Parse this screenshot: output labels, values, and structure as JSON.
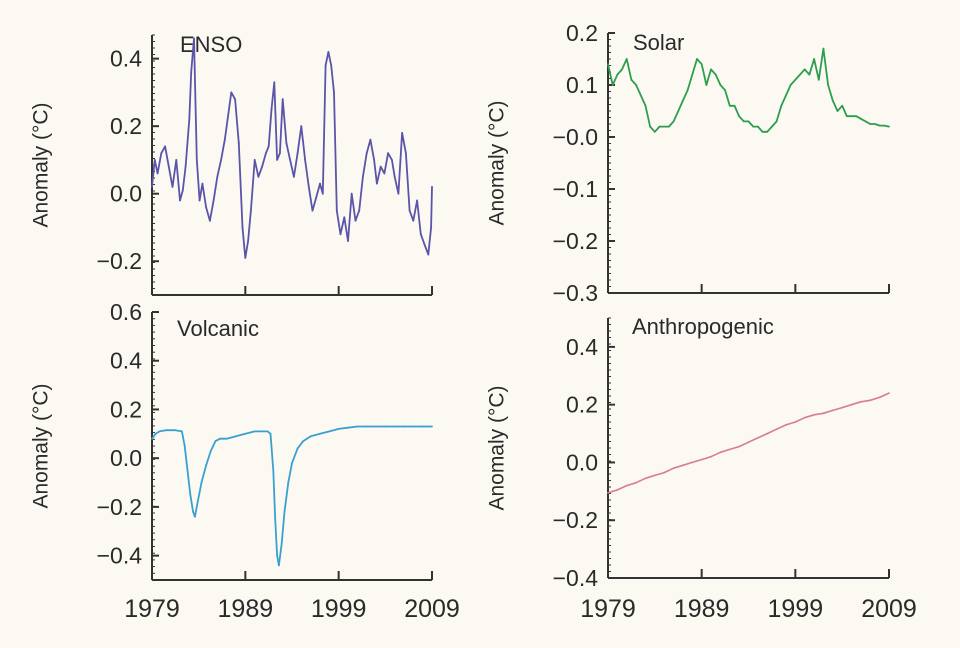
{
  "chart_data": [
    {
      "type": "line",
      "title": "ENSO",
      "xlabel": "",
      "ylabel": "Anomaly (°C)",
      "xlim": [
        1979,
        2009
      ],
      "ylim": [
        -0.3,
        0.47
      ],
      "yticks": [
        0.4,
        0.2,
        0.0,
        -0.2
      ],
      "ytick_labels": [
        "0.4",
        "0.2",
        "0.0",
        "−0.2"
      ],
      "xticks": [
        1979,
        1989,
        1999,
        2009
      ],
      "xtick_labels": [],
      "color": "#5a55a8",
      "series": [
        {
          "name": "ENSO",
          "x": [
            1979.0,
            1979.3,
            1979.6,
            1980.0,
            1980.4,
            1980.8,
            1981.2,
            1981.6,
            1982.0,
            1982.3,
            1982.6,
            1983.0,
            1983.2,
            1983.5,
            1983.8,
            1984.1,
            1984.4,
            1984.8,
            1985.2,
            1985.6,
            1986.0,
            1986.4,
            1986.8,
            1987.1,
            1987.5,
            1987.9,
            1988.3,
            1988.7,
            1989.0,
            1989.3,
            1989.6,
            1990.0,
            1990.4,
            1990.8,
            1991.2,
            1991.5,
            1991.8,
            1992.1,
            1992.4,
            1992.7,
            1993.0,
            1993.4,
            1993.8,
            1994.2,
            1994.6,
            1995.0,
            1995.4,
            1995.8,
            1996.2,
            1996.6,
            1997.0,
            1997.3,
            1997.6,
            1997.9,
            1998.2,
            1998.5,
            1998.8,
            1999.2,
            1999.6,
            2000.0,
            2000.4,
            2000.8,
            2001.2,
            2001.6,
            2002.0,
            2002.4,
            2002.8,
            2003.1,
            2003.5,
            2003.9,
            2004.3,
            2004.7,
            2005.0,
            2005.4,
            2005.8,
            2006.2,
            2006.6,
            2007.0,
            2007.4,
            2007.8,
            2008.2,
            2008.6,
            2008.9,
            2009.0
          ],
          "values": [
            0.02,
            0.1,
            0.06,
            0.12,
            0.14,
            0.08,
            0.02,
            0.1,
            -0.02,
            0.01,
            0.08,
            0.22,
            0.36,
            0.46,
            0.1,
            -0.02,
            0.03,
            -0.04,
            -0.08,
            -0.02,
            0.05,
            0.1,
            0.16,
            0.22,
            0.3,
            0.28,
            0.15,
            -0.1,
            -0.19,
            -0.14,
            -0.05,
            0.1,
            0.05,
            0.08,
            0.12,
            0.14,
            0.25,
            0.33,
            0.1,
            0.12,
            0.28,
            0.15,
            0.1,
            0.05,
            0.12,
            0.2,
            0.1,
            0.02,
            -0.05,
            -0.01,
            0.03,
            0.0,
            0.38,
            0.42,
            0.38,
            0.3,
            -0.05,
            -0.12,
            -0.07,
            -0.14,
            0.0,
            -0.08,
            -0.05,
            0.05,
            0.12,
            0.16,
            0.1,
            0.03,
            0.08,
            0.06,
            0.12,
            0.1,
            0.05,
            0.0,
            0.18,
            0.12,
            -0.05,
            -0.08,
            -0.02,
            -0.12,
            -0.15,
            -0.18,
            -0.1,
            0.02
          ]
        }
      ]
    },
    {
      "type": "line",
      "title": "Solar",
      "xlabel": "",
      "ylabel": "Anomaly (°C)",
      "xlim": [
        1979,
        2009
      ],
      "ylim": [
        -0.3,
        0.2
      ],
      "yticks": [
        0.2,
        0.1,
        0.0,
        -0.1,
        -0.2,
        -0.3
      ],
      "ytick_labels": [
        "0.2",
        "0.1",
        "−0.0",
        "−0.1",
        "−0.2",
        "−0.3"
      ],
      "xticks": [
        1979,
        1989,
        1999,
        2009
      ],
      "xtick_labels": [],
      "color": "#2e9e4e",
      "series": [
        {
          "name": "Solar",
          "x": [
            1979.0,
            1979.5,
            1980.0,
            1980.5,
            1981.0,
            1981.5,
            1982.0,
            1982.5,
            1983.0,
            1983.5,
            1984.0,
            1984.5,
            1985.0,
            1985.5,
            1986.0,
            1986.5,
            1987.0,
            1987.5,
            1988.0,
            1988.5,
            1989.0,
            1989.5,
            1990.0,
            1990.5,
            1991.0,
            1991.5,
            1992.0,
            1992.5,
            1993.0,
            1993.5,
            1994.0,
            1994.5,
            1995.0,
            1995.5,
            1996.0,
            1996.5,
            1997.0,
            1997.5,
            1998.0,
            1998.5,
            1999.0,
            1999.5,
            2000.0,
            2000.5,
            2001.0,
            2001.5,
            2002.0,
            2002.5,
            2003.0,
            2003.5,
            2004.0,
            2004.5,
            2005.0,
            2005.5,
            2006.0,
            2006.5,
            2007.0,
            2007.5,
            2008.0,
            2008.5,
            2009.0
          ],
          "values": [
            0.14,
            0.1,
            0.12,
            0.13,
            0.15,
            0.11,
            0.1,
            0.08,
            0.06,
            0.02,
            0.01,
            0.02,
            0.02,
            0.02,
            0.03,
            0.05,
            0.07,
            0.09,
            0.12,
            0.15,
            0.14,
            0.1,
            0.13,
            0.12,
            0.1,
            0.09,
            0.06,
            0.06,
            0.04,
            0.03,
            0.03,
            0.02,
            0.02,
            0.01,
            0.01,
            0.02,
            0.03,
            0.06,
            0.08,
            0.1,
            0.11,
            0.12,
            0.13,
            0.12,
            0.15,
            0.11,
            0.17,
            0.1,
            0.07,
            0.05,
            0.06,
            0.04,
            0.04,
            0.04,
            0.035,
            0.03,
            0.025,
            0.025,
            0.022,
            0.022,
            0.02
          ]
        }
      ]
    },
    {
      "type": "line",
      "title": "Volcanic",
      "xlabel": "",
      "ylabel": "Anomaly (°C)",
      "xlim": [
        1979,
        2009
      ],
      "ylim": [
        -0.5,
        0.6
      ],
      "yticks": [
        0.6,
        0.4,
        0.2,
        0.0,
        -0.2,
        -0.4
      ],
      "ytick_labels": [
        "0.6",
        "0.4",
        "0.2",
        "0.0",
        "−0.2",
        "−0.4"
      ],
      "xticks": [
        1979,
        1989,
        1999,
        2009
      ],
      "xtick_labels": [
        "1979",
        "1989",
        "1999",
        "2009"
      ],
      "color": "#3aa0d0",
      "series": [
        {
          "name": "Volcanic",
          "x": [
            1979.0,
            1979.4,
            1979.8,
            1980.5,
            1981.5,
            1982.2,
            1982.5,
            1982.8,
            1983.1,
            1983.4,
            1983.6,
            1983.9,
            1984.3,
            1984.8,
            1985.3,
            1985.8,
            1986.3,
            1987.0,
            1988.0,
            1989.0,
            1990.0,
            1991.0,
            1991.4,
            1991.7,
            1992.0,
            1992.2,
            1992.4,
            1992.6,
            1992.9,
            1993.2,
            1993.6,
            1994.0,
            1994.6,
            1995.2,
            1996.0,
            1997.0,
            1998.0,
            1999.0,
            2000.0,
            2001.0,
            2002.0,
            2003.0,
            2004.0,
            2005.0,
            2006.0,
            2007.0,
            2008.0,
            2009.0
          ],
          "values": [
            0.08,
            0.1,
            0.11,
            0.115,
            0.115,
            0.11,
            0.05,
            -0.05,
            -0.15,
            -0.22,
            -0.24,
            -0.18,
            -0.1,
            -0.03,
            0.03,
            0.07,
            0.08,
            0.08,
            0.09,
            0.1,
            0.11,
            0.11,
            0.11,
            0.1,
            -0.05,
            -0.25,
            -0.4,
            -0.44,
            -0.35,
            -0.22,
            -0.1,
            -0.02,
            0.04,
            0.07,
            0.09,
            0.1,
            0.11,
            0.12,
            0.125,
            0.13,
            0.13,
            0.13,
            0.13,
            0.13,
            0.13,
            0.13,
            0.13,
            0.13
          ]
        }
      ]
    },
    {
      "type": "line",
      "title": "Anthropogenic",
      "xlabel": "",
      "ylabel": "Anomaly (°C)",
      "xlim": [
        1979,
        2009
      ],
      "ylim": [
        -0.4,
        0.5
      ],
      "yticks": [
        0.4,
        0.2,
        0.0,
        -0.2,
        -0.4
      ],
      "ytick_labels": [
        "0.4",
        "0.2",
        "0.0",
        "−0.2",
        "−0.4"
      ],
      "xticks": [
        1979,
        1989,
        1999,
        2009
      ],
      "xtick_labels": [
        "1979",
        "1989",
        "1999",
        "2009"
      ],
      "color": "#d87a9a",
      "series": [
        {
          "name": "Anthropogenic",
          "x": [
            1979,
            1980,
            1981,
            1982,
            1983,
            1984,
            1985,
            1986,
            1987,
            1988,
            1989,
            1990,
            1991,
            1992,
            1993,
            1994,
            1995,
            1996,
            1997,
            1998,
            1999,
            2000,
            2001,
            2002,
            2003,
            2004,
            2005,
            2006,
            2007,
            2008,
            2009
          ],
          "values": [
            -0.105,
            -0.095,
            -0.08,
            -0.07,
            -0.055,
            -0.045,
            -0.035,
            -0.02,
            -0.01,
            0.0,
            0.01,
            0.02,
            0.035,
            0.045,
            0.055,
            0.07,
            0.085,
            0.1,
            0.115,
            0.13,
            0.14,
            0.155,
            0.165,
            0.17,
            0.18,
            0.19,
            0.2,
            0.21,
            0.215,
            0.225,
            0.24
          ]
        }
      ]
    }
  ]
}
